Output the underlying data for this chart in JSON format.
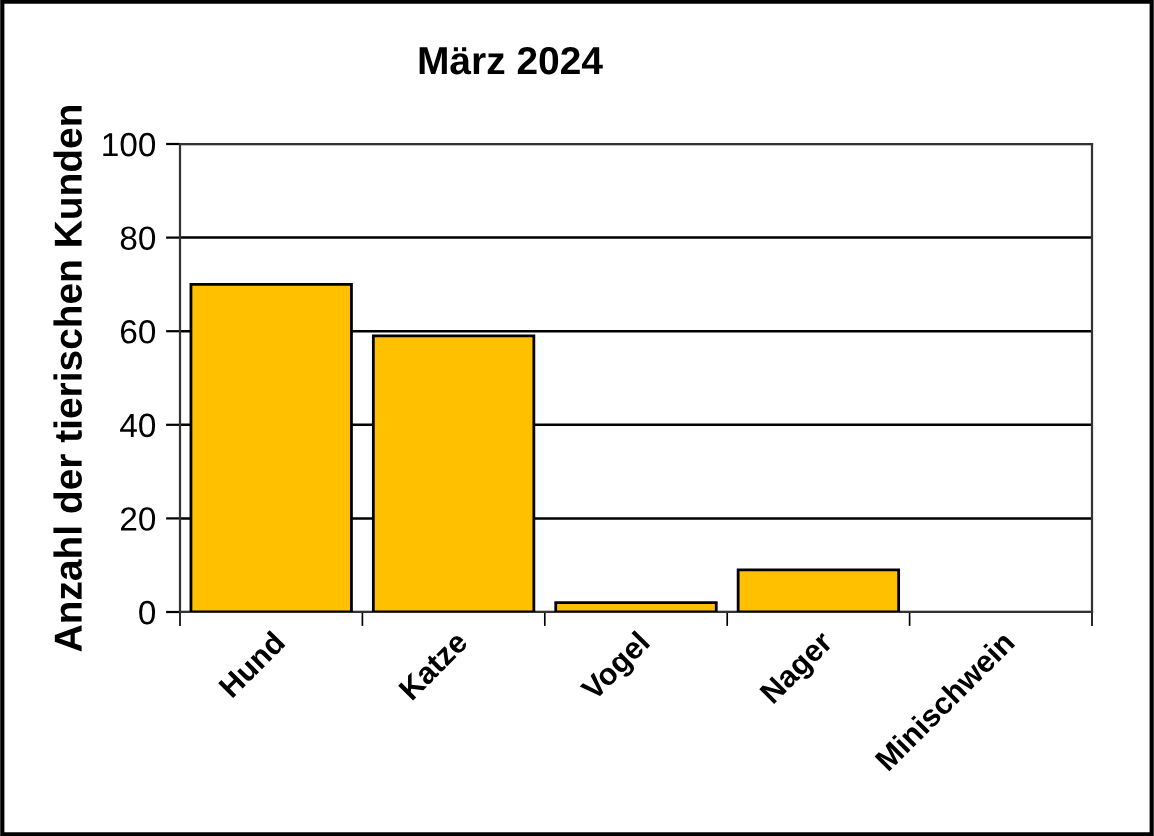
{
  "chart_data": {
    "type": "bar",
    "title": "März 2024",
    "ylabel": "Anzahl der tierischen Kunden",
    "categories": [
      "Hund",
      "Katze",
      "Vogel",
      "Nager",
      "Minischwein"
    ],
    "values": [
      70,
      59,
      2,
      9,
      0
    ],
    "color": "#ffc000",
    "ylim": [
      0,
      100
    ],
    "yticks": [
      0,
      20,
      40,
      60,
      80,
      100
    ],
    "grid": "y",
    "legend": false
  }
}
